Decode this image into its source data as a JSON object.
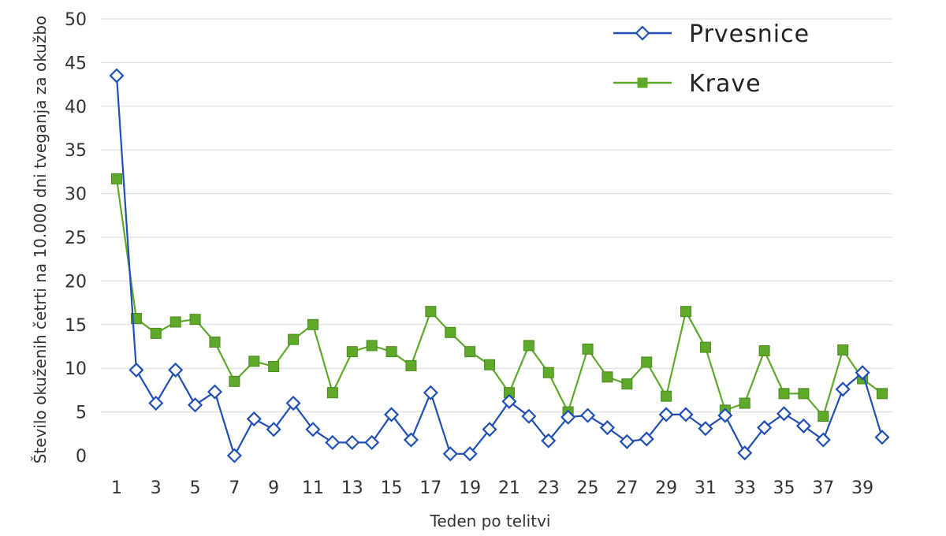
{
  "chart_data": {
    "type": "line",
    "title": "",
    "xlabel": "Teden po telitvi",
    "ylabel": "Število okuženih četrti na 10.000 dni tveganja za okužbo",
    "ylim": [
      0,
      50
    ],
    "yticks": [
      0,
      5,
      10,
      15,
      20,
      25,
      30,
      35,
      40,
      45,
      50
    ],
    "x": [
      1,
      2,
      3,
      4,
      5,
      6,
      7,
      8,
      9,
      10,
      11,
      12,
      13,
      14,
      15,
      16,
      17,
      18,
      19,
      20,
      21,
      22,
      23,
      24,
      25,
      26,
      27,
      28,
      29,
      30,
      31,
      32,
      33,
      34,
      35,
      36,
      37,
      38,
      39,
      40
    ],
    "xtick_labels": [
      1,
      3,
      5,
      7,
      9,
      11,
      13,
      15,
      17,
      19,
      21,
      23,
      25,
      27,
      29,
      31,
      33,
      35,
      37,
      39
    ],
    "grid": true,
    "legend_position": "top-right",
    "series": [
      {
        "name": "Prvesnice",
        "color": "#1f4fb4",
        "marker": "diamond-open",
        "values": [
          43.5,
          9.8,
          6,
          9.8,
          5.8,
          7.3,
          0,
          4.2,
          3,
          6,
          3,
          1.5,
          1.5,
          1.5,
          4.7,
          1.8,
          7.2,
          0.2,
          0.2,
          3,
          6.2,
          4.5,
          1.7,
          4.4,
          4.6,
          3.2,
          1.6,
          1.9,
          4.7,
          4.7,
          3.1,
          4.6,
          0.3,
          3.2,
          4.8,
          3.4,
          1.8,
          7.6,
          9.5,
          2.1
        ]
      },
      {
        "name": "Krave",
        "color": "#5ea82a",
        "marker": "square-filled",
        "values": [
          31.7,
          15.7,
          14,
          15.3,
          15.6,
          13,
          8.5,
          10.8,
          10.2,
          13.3,
          15,
          7.2,
          11.9,
          12.6,
          11.9,
          10.3,
          16.5,
          14.1,
          11.9,
          10.4,
          7.2,
          12.6,
          9.5,
          5,
          12.2,
          9,
          8.2,
          10.7,
          6.8,
          16.5,
          12.4,
          5.2,
          6,
          12,
          7.1,
          7.1,
          4.5,
          12.1,
          8.8,
          7.1
        ]
      }
    ]
  }
}
